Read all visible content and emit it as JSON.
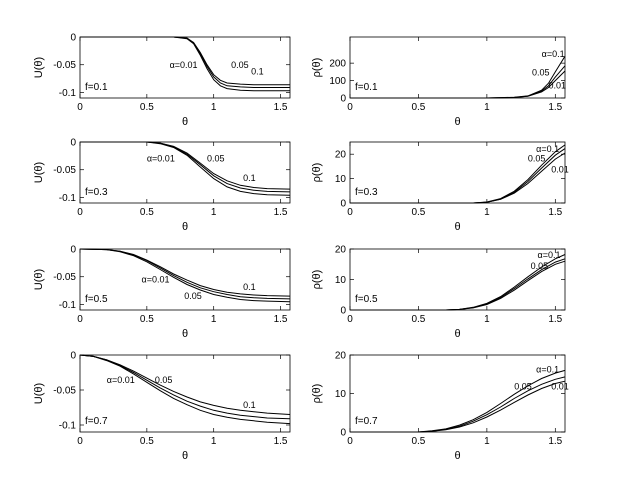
{
  "chart_data": [
    {
      "type": "line",
      "xlabel": "θ",
      "ylabel": "U(θ)",
      "annotation": "f=0.1",
      "xlim": [
        0,
        1.5708
      ],
      "ylim": [
        -0.11,
        0
      ],
      "xticks": [
        "0",
        "0.5",
        "1",
        "1.5"
      ],
      "yticks": [
        "0",
        "-0.05",
        "-0.1"
      ],
      "series_labels": [
        {
          "text": "α=0.01",
          "x": 0.67,
          "y": -0.056
        },
        {
          "text": "0.05",
          "x": 1.13,
          "y": -0.056
        },
        {
          "text": "0.1",
          "x": 1.28,
          "y": -0.068
        }
      ],
      "series": [
        {
          "x": [
            0,
            0.7,
            0.8,
            0.85,
            0.9,
            0.95,
            1.0,
            1.05,
            1.1,
            1.2,
            1.3,
            1.57
          ],
          "y": [
            0,
            0,
            -0.002,
            -0.01,
            -0.028,
            -0.05,
            -0.068,
            -0.078,
            -0.083,
            -0.085,
            -0.086,
            -0.086
          ]
        },
        {
          "x": [
            0,
            0.7,
            0.8,
            0.85,
            0.9,
            0.95,
            1.0,
            1.05,
            1.1,
            1.2,
            1.3,
            1.57
          ],
          "y": [
            0,
            0,
            -0.002,
            -0.011,
            -0.03,
            -0.053,
            -0.072,
            -0.083,
            -0.088,
            -0.09,
            -0.091,
            -0.091
          ]
        },
        {
          "x": [
            0,
            0.7,
            0.8,
            0.85,
            0.9,
            0.95,
            1.0,
            1.05,
            1.1,
            1.2,
            1.3,
            1.57
          ],
          "y": [
            0,
            0,
            -0.003,
            -0.012,
            -0.033,
            -0.057,
            -0.077,
            -0.088,
            -0.093,
            -0.096,
            -0.097,
            -0.097
          ]
        }
      ]
    },
    {
      "type": "line",
      "xlabel": "θ",
      "ylabel": "ρ(θ)",
      "annotation": "f=0.1",
      "xlim": [
        0,
        1.5708
      ],
      "ylim": [
        0,
        350
      ],
      "xticks": [
        "0",
        "0.5",
        "1",
        "1.5"
      ],
      "yticks": [
        "0",
        "100",
        "200"
      ],
      "series_labels": [
        {
          "text": "α=0.1",
          "x": 1.4,
          "y": 235
        },
        {
          "text": "0.05",
          "x": 1.33,
          "y": 130
        },
        {
          "text": "0.01",
          "x": 1.45,
          "y": 55
        }
      ],
      "series": [
        {
          "x": [
            0,
            1.0,
            1.2,
            1.3,
            1.4,
            1.45,
            1.5,
            1.5708
          ],
          "y": [
            0,
            0,
            3,
            10,
            35,
            60,
            100,
            155
          ]
        },
        {
          "x": [
            0,
            1.0,
            1.2,
            1.3,
            1.4,
            1.45,
            1.5,
            1.5708
          ],
          "y": [
            0,
            0,
            3,
            11,
            40,
            70,
            120,
            185
          ]
        },
        {
          "x": [
            0,
            1.0,
            1.2,
            1.3,
            1.4,
            1.45,
            1.5,
            1.5708
          ],
          "y": [
            0,
            0,
            4,
            12,
            45,
            85,
            150,
            240
          ]
        }
      ]
    },
    {
      "type": "line",
      "xlabel": "θ",
      "ylabel": "U(θ)",
      "annotation": "f=0.3",
      "xlim": [
        0,
        1.5708
      ],
      "ylim": [
        -0.11,
        0
      ],
      "xticks": [
        "0",
        "0.5",
        "1",
        "1.5"
      ],
      "yticks": [
        "0",
        "-0.05",
        "-0.1"
      ],
      "series_labels": [
        {
          "text": "α=0.01",
          "x": 0.5,
          "y": -0.035
        },
        {
          "text": "0.05",
          "x": 0.95,
          "y": -0.035
        },
        {
          "text": "0.1",
          "x": 1.22,
          "y": -0.07
        }
      ],
      "series": [
        {
          "x": [
            0,
            0.5,
            0.6,
            0.7,
            0.8,
            0.9,
            1.0,
            1.1,
            1.2,
            1.3,
            1.4,
            1.5708
          ],
          "y": [
            0,
            0,
            -0.002,
            -0.008,
            -0.02,
            -0.038,
            -0.057,
            -0.07,
            -0.078,
            -0.082,
            -0.084,
            -0.085
          ]
        },
        {
          "x": [
            0,
            0.5,
            0.6,
            0.7,
            0.8,
            0.9,
            1.0,
            1.1,
            1.2,
            1.3,
            1.4,
            1.5708
          ],
          "y": [
            0,
            0,
            -0.002,
            -0.009,
            -0.022,
            -0.041,
            -0.061,
            -0.075,
            -0.083,
            -0.087,
            -0.089,
            -0.09
          ]
        },
        {
          "x": [
            0,
            0.5,
            0.6,
            0.7,
            0.8,
            0.9,
            1.0,
            1.1,
            1.2,
            1.3,
            1.4,
            1.5708
          ],
          "y": [
            0,
            0,
            -0.003,
            -0.01,
            -0.024,
            -0.045,
            -0.066,
            -0.081,
            -0.089,
            -0.093,
            -0.095,
            -0.096
          ]
        }
      ]
    },
    {
      "type": "line",
      "xlabel": "θ",
      "ylabel": "ρ(θ)",
      "annotation": "f=0.3",
      "xlim": [
        0,
        1.5708
      ],
      "ylim": [
        0,
        25
      ],
      "xticks": [
        "0",
        "0.5",
        "1",
        "1.5"
      ],
      "yticks": [
        "0",
        "10",
        "20"
      ],
      "series_labels": [
        {
          "text": "α=0.1",
          "x": 1.36,
          "y": 21
        },
        {
          "text": "0.05",
          "x": 1.3,
          "y": 17
        },
        {
          "text": "0.01",
          "x": 1.47,
          "y": 12.5
        }
      ],
      "series": [
        {
          "x": [
            0,
            0.9,
            1.0,
            1.1,
            1.2,
            1.3,
            1.4,
            1.5,
            1.5708
          ],
          "y": [
            0,
            0,
            0.3,
            1.5,
            4,
            8,
            13,
            18,
            20.5
          ]
        },
        {
          "x": [
            0,
            0.9,
            1.0,
            1.1,
            1.2,
            1.3,
            1.4,
            1.5,
            1.5708
          ],
          "y": [
            0,
            0,
            0.3,
            1.6,
            4.4,
            8.8,
            14.3,
            19.6,
            22.3
          ]
        },
        {
          "x": [
            0,
            0.9,
            1.0,
            1.1,
            1.2,
            1.3,
            1.4,
            1.5,
            1.5708
          ],
          "y": [
            0,
            0,
            0.4,
            1.8,
            4.8,
            9.6,
            15.5,
            21,
            23.8
          ]
        }
      ]
    },
    {
      "type": "line",
      "xlabel": "θ",
      "ylabel": "U(θ)",
      "annotation": "f=0.5",
      "xlim": [
        0,
        1.5708
      ],
      "ylim": [
        -0.11,
        0
      ],
      "xticks": [
        "0",
        "0.5",
        "1",
        "1.5"
      ],
      "yticks": [
        "0",
        "-0.05",
        "-0.1"
      ],
      "series_labels": [
        {
          "text": "α=0.01",
          "x": 0.46,
          "y": -0.06
        },
        {
          "text": "0.05",
          "x": 0.78,
          "y": -0.09
        },
        {
          "text": "0.1",
          "x": 1.22,
          "y": -0.074
        }
      ],
      "series": [
        {
          "x": [
            0,
            0.2,
            0.3,
            0.4,
            0.5,
            0.6,
            0.7,
            0.8,
            0.9,
            1.0,
            1.1,
            1.2,
            1.3,
            1.4,
            1.5708
          ],
          "y": [
            0,
            -0.001,
            -0.004,
            -0.01,
            -0.02,
            -0.032,
            -0.045,
            -0.056,
            -0.066,
            -0.073,
            -0.078,
            -0.081,
            -0.083,
            -0.084,
            -0.085
          ]
        },
        {
          "x": [
            0,
            0.2,
            0.3,
            0.4,
            0.5,
            0.6,
            0.7,
            0.8,
            0.9,
            1.0,
            1.1,
            1.2,
            1.3,
            1.4,
            1.5708
          ],
          "y": [
            0,
            -0.001,
            -0.004,
            -0.011,
            -0.021,
            -0.034,
            -0.048,
            -0.06,
            -0.07,
            -0.077,
            -0.082,
            -0.086,
            -0.088,
            -0.089,
            -0.09
          ]
        },
        {
          "x": [
            0,
            0.2,
            0.3,
            0.4,
            0.5,
            0.6,
            0.7,
            0.8,
            0.9,
            1.0,
            1.1,
            1.2,
            1.3,
            1.4,
            1.5708
          ],
          "y": [
            0,
            -0.001,
            -0.005,
            -0.012,
            -0.023,
            -0.037,
            -0.051,
            -0.064,
            -0.074,
            -0.082,
            -0.087,
            -0.091,
            -0.093,
            -0.094,
            -0.095
          ]
        }
      ]
    },
    {
      "type": "line",
      "xlabel": "θ",
      "ylabel": "ρ(θ)",
      "annotation": "f=0.5",
      "xlim": [
        0,
        1.5708
      ],
      "ylim": [
        0,
        20
      ],
      "xticks": [
        "0",
        "0.5",
        "1",
        "1.5"
      ],
      "yticks": [
        "0",
        "10",
        "20"
      ],
      "series_labels": [
        {
          "text": "α=0.1",
          "x": 1.37,
          "y": 17
        },
        {
          "text": "0.05",
          "x": 1.32,
          "y": 13.5
        }
      ],
      "series": [
        {
          "x": [
            0,
            0.7,
            0.8,
            0.9,
            1.0,
            1.1,
            1.2,
            1.3,
            1.4,
            1.5,
            1.5708
          ],
          "y": [
            0,
            0,
            0.2,
            0.7,
            1.8,
            3.8,
            6.5,
            9.6,
            12.6,
            15,
            16
          ]
        },
        {
          "x": [
            0,
            0.7,
            0.8,
            0.9,
            1.0,
            1.1,
            1.2,
            1.3,
            1.4,
            1.5,
            1.5708
          ],
          "y": [
            0,
            0,
            0.2,
            0.8,
            2,
            4.1,
            7,
            10.2,
            13.2,
            15.7,
            16.8
          ]
        },
        {
          "x": [
            0,
            0.7,
            0.8,
            0.9,
            1.0,
            1.1,
            1.2,
            1.3,
            1.4,
            1.5,
            1.5708
          ],
          "y": [
            0,
            0,
            0.2,
            0.9,
            2.2,
            4.4,
            7.5,
            10.9,
            14.1,
            16.8,
            18.2
          ]
        }
      ]
    },
    {
      "type": "line",
      "xlabel": "θ",
      "ylabel": "U(θ)",
      "annotation": "f=0.7",
      "xlim": [
        0,
        1.5708
      ],
      "ylim": [
        -0.11,
        0
      ],
      "xticks": [
        "0",
        "0.5",
        "1",
        "1.5"
      ],
      "yticks": [
        "0",
        "-0.05",
        "-0.1"
      ],
      "series_labels": [
        {
          "text": "α=0.01",
          "x": 0.2,
          "y": -0.04
        },
        {
          "text": "0.05",
          "x": 0.56,
          "y": -0.04
        },
        {
          "text": "0.1",
          "x": 1.22,
          "y": -0.076
        }
      ],
      "series": [
        {
          "x": [
            0,
            0.1,
            0.2,
            0.3,
            0.4,
            0.5,
            0.6,
            0.7,
            0.8,
            0.9,
            1.0,
            1.1,
            1.2,
            1.3,
            1.4,
            1.5708
          ],
          "y": [
            0,
            -0.002,
            -0.007,
            -0.014,
            -0.023,
            -0.033,
            -0.043,
            -0.052,
            -0.06,
            -0.067,
            -0.072,
            -0.076,
            -0.079,
            -0.081,
            -0.083,
            -0.085
          ]
        },
        {
          "x": [
            0,
            0.1,
            0.2,
            0.3,
            0.4,
            0.5,
            0.6,
            0.7,
            0.8,
            0.9,
            1.0,
            1.1,
            1.2,
            1.3,
            1.4,
            1.5708
          ],
          "y": [
            0,
            -0.002,
            -0.007,
            -0.015,
            -0.025,
            -0.036,
            -0.047,
            -0.057,
            -0.066,
            -0.073,
            -0.079,
            -0.083,
            -0.086,
            -0.088,
            -0.09,
            -0.091
          ]
        },
        {
          "x": [
            0,
            0.1,
            0.2,
            0.3,
            0.4,
            0.5,
            0.6,
            0.7,
            0.8,
            0.9,
            1.0,
            1.1,
            1.2,
            1.3,
            1.4,
            1.5708
          ],
          "y": [
            0,
            -0.002,
            -0.008,
            -0.016,
            -0.027,
            -0.039,
            -0.051,
            -0.062,
            -0.071,
            -0.079,
            -0.085,
            -0.089,
            -0.092,
            -0.094,
            -0.096,
            -0.098
          ]
        }
      ]
    },
    {
      "type": "line",
      "xlabel": "θ",
      "ylabel": "ρ(θ)",
      "annotation": "f=0.7",
      "xlim": [
        0,
        1.5708
      ],
      "ylim": [
        0,
        20
      ],
      "xticks": [
        "0",
        "0.5",
        "1",
        "1.5"
      ],
      "yticks": [
        "0",
        "10",
        "20"
      ],
      "series_labels": [
        {
          "text": "α=0.1",
          "x": 1.36,
          "y": 15.5
        },
        {
          "text": "0.05",
          "x": 1.2,
          "y": 11
        },
        {
          "text": "0.01",
          "x": 1.47,
          "y": 11
        }
      ],
      "series": [
        {
          "x": [
            0,
            0.5,
            0.6,
            0.7,
            0.8,
            0.9,
            1.0,
            1.1,
            1.2,
            1.3,
            1.4,
            1.5,
            1.5708
          ],
          "y": [
            0,
            0,
            0.2,
            0.6,
            1.3,
            2.4,
            3.9,
            5.7,
            7.7,
            9.6,
            11.3,
            12.6,
            13.2
          ]
        },
        {
          "x": [
            0,
            0.5,
            0.6,
            0.7,
            0.8,
            0.9,
            1.0,
            1.1,
            1.2,
            1.3,
            1.4,
            1.5,
            1.5708
          ],
          "y": [
            0,
            0,
            0.2,
            0.7,
            1.5,
            2.8,
            4.5,
            6.5,
            8.7,
            10.7,
            12.4,
            13.7,
            14.3
          ]
        },
        {
          "x": [
            0,
            0.5,
            0.6,
            0.7,
            0.8,
            0.9,
            1.0,
            1.1,
            1.2,
            1.3,
            1.4,
            1.5,
            1.5708
          ],
          "y": [
            0,
            0,
            0.3,
            0.8,
            1.8,
            3.2,
            5.1,
            7.4,
            9.8,
            12,
            13.9,
            15.3,
            16
          ]
        }
      ]
    }
  ]
}
